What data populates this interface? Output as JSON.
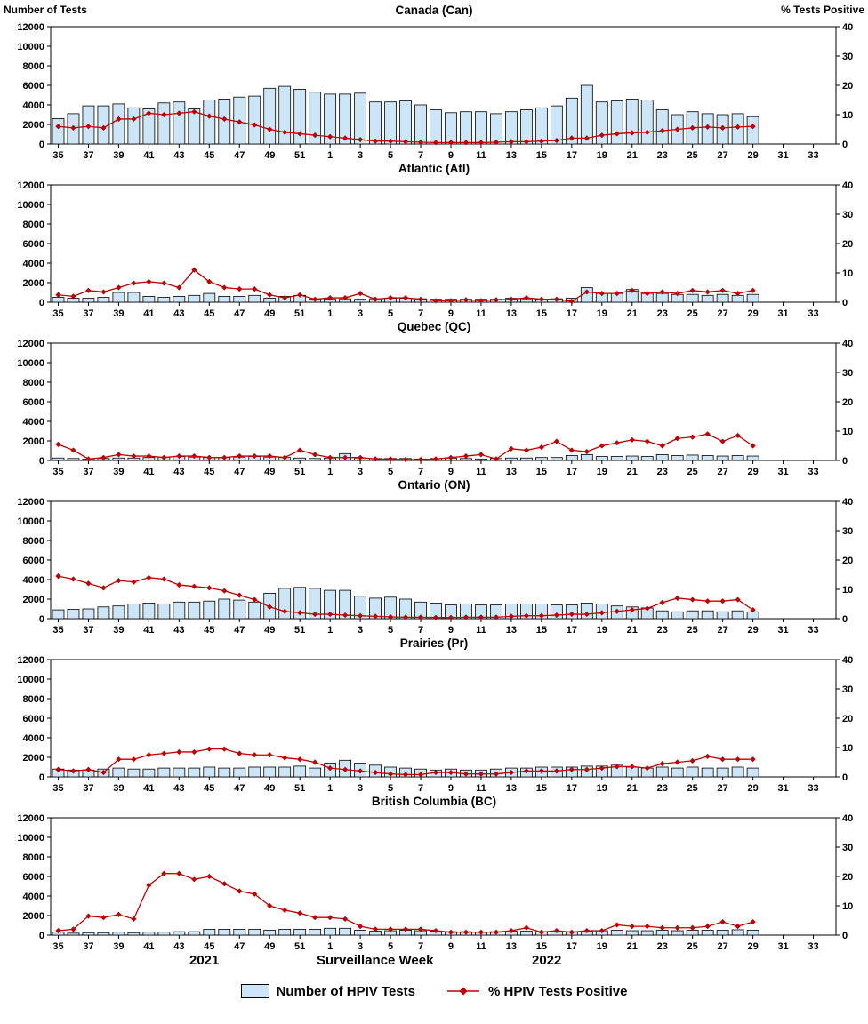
{
  "page": {
    "left_axis_title": "Number of Tests",
    "right_axis_title": "% Tests Positive",
    "x_axis_title": "Surveillance Week",
    "years": [
      "2021",
      "2022"
    ],
    "legend": {
      "bars_label": "Number of HPIV Tests",
      "line_label": "% HPIV Tests Positive"
    },
    "colors": {
      "bar_fill": "#cde6f7",
      "bar_border": "#000000",
      "line": "#c00000",
      "plot_border": "#000000"
    }
  },
  "chart_data": {
    "type": "bar+line",
    "layout": "small-multiples-vertical",
    "x_axis": {
      "label": "Surveillance Week",
      "weeks_2021_range": [
        35,
        52
      ],
      "weeks_2022_range": [
        1,
        34
      ],
      "tick_labels": [
        "35",
        "37",
        "39",
        "41",
        "43",
        "45",
        "47",
        "49",
        "51",
        "1",
        "3",
        "5",
        "7",
        "9",
        "11",
        "13",
        "15",
        "17",
        "19",
        "21",
        "23",
        "25",
        "27",
        "29",
        "31",
        "33"
      ]
    },
    "left_axis": {
      "label": "Number of Tests",
      "lim": [
        0,
        12000
      ],
      "ticks": [
        0,
        2000,
        4000,
        6000,
        8000,
        10000,
        12000
      ]
    },
    "right_axis": {
      "label": "% Tests Positive",
      "lim": [
        0,
        40
      ],
      "ticks": [
        0,
        10,
        20,
        30,
        40
      ]
    },
    "weeks": [
      35,
      36,
      37,
      38,
      39,
      40,
      41,
      42,
      43,
      44,
      45,
      46,
      47,
      48,
      49,
      50,
      51,
      52,
      1,
      2,
      3,
      4,
      5,
      6,
      7,
      8,
      9,
      10,
      11,
      12,
      13,
      14,
      15,
      16,
      17,
      18,
      19,
      20,
      21,
      22,
      23,
      24,
      25,
      26,
      27,
      28,
      29
    ],
    "legend": [
      "Number of HPIV Tests",
      "% HPIV Tests Positive"
    ],
    "panels": [
      {
        "title": "Canada (Can)",
        "tests": [
          2600,
          3100,
          3900,
          3900,
          4100,
          3700,
          3600,
          4200,
          4300,
          3600,
          4500,
          4600,
          4800,
          4900,
          5700,
          5900,
          5600,
          5300,
          5100,
          5100,
          5200,
          4300,
          4300,
          4400,
          4000,
          3500,
          3200,
          3300,
          3300,
          3100,
          3300,
          3500,
          3700,
          3900,
          4700,
          6000,
          4300,
          4400,
          4600,
          4500,
          3500,
          3000,
          3300,
          3100,
          3000,
          3100,
          2800
        ],
        "pct_positive": [
          6,
          5.5,
          6,
          5.5,
          8.5,
          8.5,
          10.5,
          10,
          10.5,
          11,
          9.5,
          8.5,
          7.5,
          6.5,
          5,
          4,
          3.5,
          3,
          2.5,
          2,
          1.5,
          1,
          1,
          0.8,
          0.6,
          0.5,
          0.5,
          0.5,
          0.5,
          0.6,
          0.8,
          0.8,
          1,
          1.2,
          2,
          2,
          3,
          3.5,
          3.8,
          4,
          4.5,
          5,
          5.5,
          5.8,
          5.5,
          5.8,
          6
        ]
      },
      {
        "title": "Atlantic (Atl)",
        "tests": [
          500,
          400,
          400,
          500,
          1000,
          1000,
          600,
          500,
          600,
          700,
          900,
          600,
          600,
          700,
          400,
          600,
          700,
          300,
          300,
          350,
          300,
          350,
          400,
          400,
          350,
          300,
          300,
          300,
          300,
          300,
          400,
          350,
          300,
          350,
          400,
          1500,
          900,
          900,
          1300,
          900,
          900,
          800,
          800,
          700,
          800,
          700,
          800
        ],
        "pct_positive": [
          2.5,
          2,
          4,
          3.5,
          5,
          6.5,
          7,
          6.5,
          5,
          11,
          7,
          5,
          4.5,
          4.5,
          2.5,
          1.5,
          2.5,
          1,
          1.5,
          1.5,
          3,
          1,
          1.5,
          1.5,
          1,
          0.5,
          0.5,
          0.8,
          0.5,
          0.8,
          1,
          1.5,
          1,
          1,
          0.3,
          3.5,
          3,
          3,
          4,
          3,
          3.5,
          3,
          4,
          3.5,
          4,
          3,
          4
        ]
      },
      {
        "title": "Quebec (QC)",
        "tests": [
          250,
          200,
          150,
          200,
          250,
          250,
          300,
          350,
          400,
          350,
          300,
          300,
          350,
          400,
          350,
          300,
          250,
          200,
          250,
          700,
          250,
          200,
          200,
          200,
          150,
          200,
          250,
          200,
          150,
          200,
          250,
          250,
          300,
          300,
          500,
          600,
          400,
          400,
          450,
          400,
          600,
          500,
          550,
          500,
          450,
          500,
          450
        ],
        "pct_positive": [
          5.5,
          3.5,
          0.5,
          1,
          2,
          1.5,
          1.5,
          1,
          1.5,
          1.5,
          1,
          1,
          1.5,
          1.5,
          1.5,
          1,
          3.5,
          2,
          1,
          1,
          1,
          0.5,
          0.5,
          0.3,
          0.3,
          0.5,
          1,
          1.5,
          2,
          0.5,
          4,
          3.5,
          4.5,
          6.5,
          3.5,
          3,
          5,
          6,
          7,
          6.5,
          5,
          7.5,
          8,
          9,
          6.5,
          8.5,
          5
        ]
      },
      {
        "title": "Ontario (ON)",
        "tests": [
          900,
          950,
          1000,
          1200,
          1300,
          1500,
          1600,
          1500,
          1700,
          1700,
          1800,
          2000,
          1900,
          1700,
          2600,
          3100,
          3200,
          3100,
          2900,
          2900,
          2300,
          2100,
          2200,
          2000,
          1700,
          1600,
          1400,
          1500,
          1400,
          1400,
          1500,
          1500,
          1500,
          1400,
          1400,
          1600,
          1500,
          1300,
          1200,
          1100,
          800,
          700,
          800,
          800,
          700,
          800,
          700
        ],
        "pct_positive": [
          14.5,
          13.5,
          12,
          10.5,
          13,
          12.5,
          14,
          13.5,
          11.5,
          11,
          10.5,
          9.5,
          8,
          6.5,
          4,
          2.5,
          2,
          1.5,
          1.5,
          1.2,
          1,
          0.8,
          0.6,
          0.5,
          0.5,
          0.4,
          0.4,
          0.5,
          0.5,
          0.5,
          0.8,
          1,
          1,
          1.2,
          1.5,
          1.5,
          2,
          2.5,
          3,
          3.5,
          5.5,
          7,
          6.5,
          6,
          6,
          6.5,
          3
        ]
      },
      {
        "title": "Prairies (Pr)",
        "tests": [
          800,
          700,
          700,
          800,
          900,
          800,
          800,
          900,
          900,
          900,
          1000,
          900,
          900,
          1000,
          1000,
          1000,
          1100,
          900,
          1400,
          1700,
          1400,
          1200,
          1000,
          900,
          800,
          700,
          800,
          700,
          700,
          800,
          900,
          900,
          1000,
          1000,
          1000,
          1100,
          1100,
          1200,
          1000,
          900,
          1000,
          900,
          1000,
          900,
          900,
          1000,
          900
        ],
        "pct_positive": [
          2.5,
          2,
          2.5,
          1.5,
          6,
          6,
          7.5,
          8,
          8.5,
          8.5,
          9.5,
          9.5,
          8,
          7.5,
          7.5,
          6.5,
          6,
          5,
          3,
          2.5,
          2,
          1.5,
          1,
          0.8,
          0.8,
          1.5,
          1.5,
          1,
          1,
          1,
          1.5,
          2,
          2,
          2,
          2.5,
          2.5,
          3,
          3.5,
          3.5,
          3,
          4.5,
          5,
          5.5,
          7,
          6,
          6,
          6
        ]
      },
      {
        "title": "British Columbia (BC)",
        "tests": [
          300,
          200,
          250,
          250,
          300,
          250,
          300,
          300,
          350,
          350,
          600,
          600,
          600,
          600,
          500,
          600,
          600,
          600,
          700,
          700,
          500,
          400,
          450,
          500,
          450,
          400,
          350,
          350,
          300,
          350,
          400,
          400,
          350,
          350,
          350,
          400,
          450,
          500,
          450,
          450,
          500,
          450,
          500,
          500,
          500,
          550,
          500
        ],
        "pct_positive": [
          1.5,
          2,
          6.5,
          6,
          7,
          5.5,
          17,
          21,
          21,
          19,
          20,
          17.5,
          15,
          14,
          10,
          8.5,
          7.5,
          6,
          6,
          5.5,
          3,
          2,
          2,
          2,
          2,
          1.5,
          1,
          1,
          1,
          1,
          1.5,
          2.5,
          1,
          1.5,
          1,
          1.5,
          1.5,
          3.5,
          3,
          3,
          2.5,
          2.5,
          2.5,
          3,
          4.5,
          3,
          4.5
        ]
      }
    ]
  }
}
